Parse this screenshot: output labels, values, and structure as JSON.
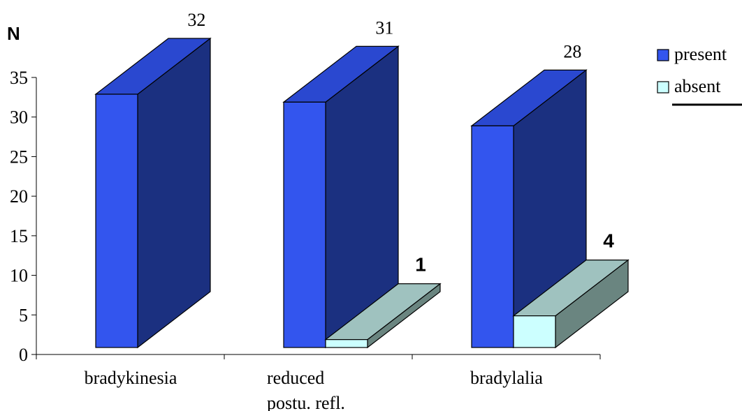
{
  "chart_data": {
    "type": "bar",
    "title": "",
    "ylabel": "N",
    "xlabel": "",
    "ylim": [
      0,
      35
    ],
    "yticks": [
      0,
      5,
      10,
      15,
      20,
      25,
      30,
      35
    ],
    "grid": false,
    "legend_position": "top-right",
    "categories": [
      "bradykinesia",
      "reduced postu. refl.",
      "bradylalia"
    ],
    "category_lines": [
      [
        "bradykinesia"
      ],
      [
        "reduced",
        "postu. refl."
      ],
      [
        "bradylalia"
      ]
    ],
    "series": [
      {
        "name": "present",
        "values": [
          32,
          31,
          28
        ],
        "color": "#3355ee",
        "side_color": "#1b3080",
        "top_color": "#2a48d0"
      },
      {
        "name": "absent",
        "values": [
          null,
          1,
          4
        ],
        "color": "#ccffff",
        "side_color": "#6a8580",
        "top_color": "#9fc2bf"
      }
    ],
    "data_labels": [
      {
        "category": 0,
        "series": "present",
        "text": "32"
      },
      {
        "category": 1,
        "series": "present",
        "text": "31"
      },
      {
        "category": 2,
        "series": "present",
        "text": "28"
      },
      {
        "category": 1,
        "series": "absent",
        "text": "1"
      },
      {
        "category": 2,
        "series": "absent",
        "text": "4"
      }
    ]
  }
}
